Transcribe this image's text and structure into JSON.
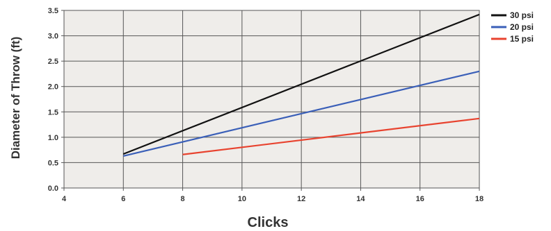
{
  "chart_data": {
    "type": "line",
    "title": "",
    "xlabel": "Clicks",
    "ylabel": "Diameter of Throw (ft)",
    "xlim": [
      4,
      18
    ],
    "ylim": [
      0,
      3.5
    ],
    "x_ticks": [
      "4",
      "6",
      "8",
      "10",
      "12",
      "14",
      "16",
      "18"
    ],
    "y_ticks": [
      "0.0",
      "0.5",
      "1.0",
      "1.5",
      "2.0",
      "2.5",
      "3.0",
      "3.5"
    ],
    "grid": true,
    "legend_position": "top-right",
    "series": [
      {
        "name": "30 psi",
        "color": "#111111",
        "points": [
          [
            6,
            0.67
          ],
          [
            18,
            3.42
          ]
        ]
      },
      {
        "name": "20 psi",
        "color": "#3a5fb8",
        "points": [
          [
            6,
            0.63
          ],
          [
            18,
            2.3
          ]
        ]
      },
      {
        "name": "15 psi",
        "color": "#e8432f",
        "points": [
          [
            8,
            0.66
          ],
          [
            18,
            1.37
          ]
        ]
      }
    ]
  }
}
